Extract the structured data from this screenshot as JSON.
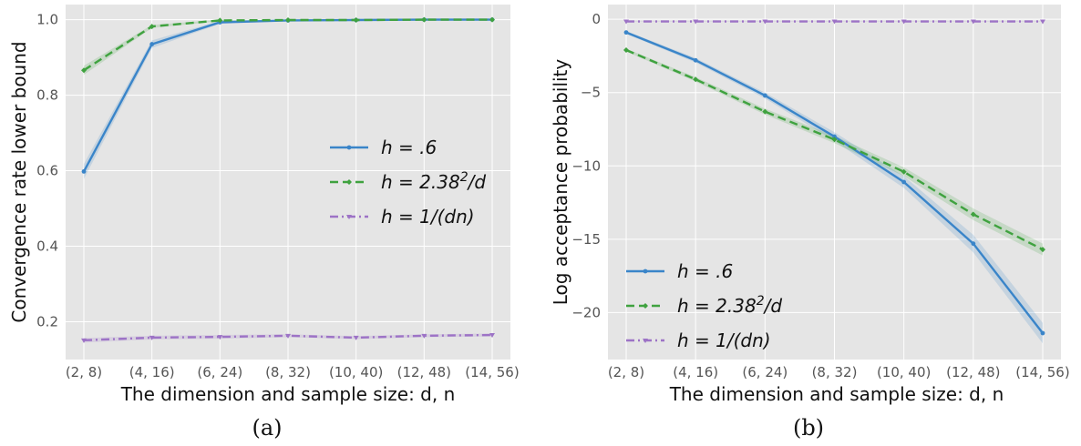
{
  "colors": {
    "panel_background": "#e5e5e5",
    "grid": "#ffffff"
  },
  "chart_data": [
    {
      "type": "line",
      "caption": "(a)",
      "xlabel": "The dimension and sample size: d, n",
      "ylabel": "Convergence rate lower bound",
      "categories": [
        "(2, 8)",
        "(4, 16)",
        "(6, 24)",
        "(8, 32)",
        "(10, 40)",
        "(12, 48)",
        "(14, 56)"
      ],
      "ylim": [
        0.1,
        1.04
      ],
      "yticks": [
        0.2,
        0.4,
        0.6,
        0.8,
        1.0
      ],
      "ytick_labels": [
        "0.2",
        "0.4",
        "0.6",
        "0.8",
        "1.0"
      ],
      "grid": true,
      "legend_position": "center-right",
      "series": [
        {
          "name": "h = .6",
          "color": "#3a85c9",
          "dash": "solid",
          "marker": "circle",
          "values": [
            0.598,
            0.935,
            0.993,
            0.998,
            0.999,
            1.0,
            1.0
          ],
          "band": [
            0.02,
            0.01,
            0.004,
            0.002,
            0.002,
            0.001,
            0.001
          ]
        },
        {
          "name": "h = 2.38²/d",
          "color": "#3fa23f",
          "dash": "dashed",
          "marker": "diamond",
          "values": [
            0.866,
            0.982,
            0.998,
            0.999,
            0.999,
            1.0,
            1.0
          ],
          "band": [
            0.012,
            0.004,
            0.002,
            0.001,
            0.001,
            0.001,
            0.001
          ]
        },
        {
          "name": "h = 1/(dn)",
          "color": "#9d73c6",
          "dash": "dashdot",
          "marker": "triangle",
          "values": [
            0.151,
            0.158,
            0.16,
            0.163,
            0.158,
            0.163,
            0.165
          ],
          "band": [
            0.006,
            0.005,
            0.005,
            0.004,
            0.004,
            0.004,
            0.004
          ]
        }
      ]
    },
    {
      "type": "line",
      "caption": "(b)",
      "xlabel": "The dimension and sample size: d, n",
      "ylabel": "Log acceptance probability",
      "categories": [
        "(2, 8)",
        "(4, 16)",
        "(6, 24)",
        "(8, 32)",
        "(10, 40)",
        "(12, 48)",
        "(14, 56)"
      ],
      "ylim": [
        -23.2,
        1.0
      ],
      "yticks": [
        -20,
        -15,
        -10,
        -5,
        0
      ],
      "ytick_labels": [
        "−20",
        "−15",
        "−10",
        "−5",
        "0"
      ],
      "grid": true,
      "legend_position": "bottom-left",
      "series": [
        {
          "name": "h = .6",
          "color": "#3a85c9",
          "dash": "solid",
          "marker": "circle",
          "values": [
            -0.9,
            -2.8,
            -5.2,
            -8.0,
            -11.1,
            -15.3,
            -21.4
          ],
          "band": [
            0.1,
            0.15,
            0.2,
            0.3,
            0.4,
            0.6,
            0.7
          ]
        },
        {
          "name": "h = 2.38²/d",
          "color": "#3fa23f",
          "dash": "dashed",
          "marker": "diamond",
          "values": [
            -2.1,
            -4.1,
            -6.3,
            -8.2,
            -10.4,
            -13.3,
            -15.7
          ],
          "band": [
            0.1,
            0.15,
            0.2,
            0.25,
            0.3,
            0.4,
            0.4
          ]
        },
        {
          "name": "h = 1/(dn)",
          "color": "#9d73c6",
          "dash": "dashdot",
          "marker": "triangle",
          "values": [
            -0.15,
            -0.15,
            -0.15,
            -0.15,
            -0.15,
            -0.15,
            -0.15
          ],
          "band": [
            0.02,
            0.02,
            0.02,
            0.02,
            0.02,
            0.02,
            0.02
          ]
        }
      ]
    }
  ]
}
